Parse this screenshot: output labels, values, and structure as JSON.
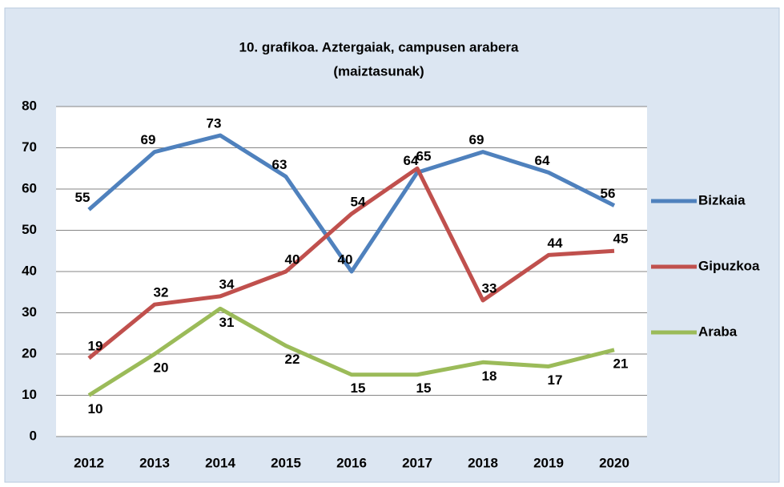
{
  "chart_data": {
    "type": "line",
    "title": "10. grafikoa. Aztergaiak, campusen arabera",
    "subtitle": "(maiztasunak)",
    "categories": [
      "2012",
      "2013",
      "2014",
      "2015",
      "2016",
      "2017",
      "2018",
      "2019",
      "2020"
    ],
    "series": [
      {
        "name": "Bizkaia",
        "color": "#4f81bd",
        "values": [
          55,
          69,
          73,
          63,
          40,
          64,
          69,
          64,
          56
        ]
      },
      {
        "name": "Gipuzkoa",
        "color": "#c0504d",
        "values": [
          19,
          32,
          34,
          40,
          54,
          65,
          33,
          44,
          45
        ]
      },
      {
        "name": "Araba",
        "color": "#9bbb59",
        "values": [
          10,
          20,
          31,
          22,
          15,
          15,
          18,
          17,
          21
        ]
      }
    ],
    "ylim": [
      0,
      80
    ],
    "yticks": [
      0,
      10,
      20,
      30,
      40,
      50,
      60,
      70,
      80
    ],
    "grid": true,
    "legend": "right"
  }
}
